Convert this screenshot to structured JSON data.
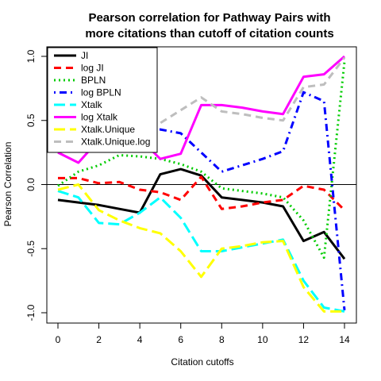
{
  "chart_data": {
    "type": "line",
    "title": "Pearson correlation for Pathway Pairs with more citations than cutoff of citation counts",
    "title_lines": [
      "Pearson correlation for Pathway Pairs with",
      "more citations than cutoff of citation counts"
    ],
    "xlabel": "Citation cutoffs",
    "ylabel": "Pearson Correlation",
    "xlim": [
      0,
      14
    ],
    "ylim": [
      -1.0,
      1.0
    ],
    "x_ticks": [
      0,
      2,
      4,
      6,
      8,
      10,
      12,
      14
    ],
    "y_ticks": [
      -1.0,
      -0.5,
      0.0,
      0.5,
      1.0
    ],
    "y_tick_labels": [
      "-1.0",
      "-0.5",
      "0.0",
      "0.5",
      "1.0"
    ],
    "hline": 0,
    "legend_position": "top-left",
    "x": [
      0,
      1,
      2,
      3,
      4,
      5,
      6,
      7,
      8,
      9,
      10,
      11,
      12,
      13,
      14
    ],
    "series": [
      {
        "name": "JI",
        "color": "#000000",
        "dash": "solid",
        "values": [
          -0.12,
          -0.14,
          -0.16,
          -0.19,
          -0.22,
          0.08,
          0.12,
          0.07,
          -0.1,
          -0.12,
          -0.14,
          -0.17,
          -0.44,
          -0.37,
          -0.58
        ]
      },
      {
        "name": "log JI",
        "color": "#ff0000",
        "dash": "dashed",
        "values": [
          0.05,
          0.05,
          0.01,
          0.02,
          -0.04,
          -0.06,
          -0.12,
          0.06,
          -0.19,
          -0.17,
          -0.14,
          -0.12,
          -0.01,
          -0.04,
          -0.2
        ]
      },
      {
        "name": "BPLN",
        "color": "#00cc00",
        "dash": "dotted",
        "values": [
          -0.01,
          0.1,
          0.15,
          0.23,
          0.22,
          0.2,
          0.16,
          0.1,
          -0.03,
          -0.05,
          -0.07,
          -0.1,
          -0.28,
          -0.57,
          0.96
        ]
      },
      {
        "name": "log BPLN",
        "color": "#0000ff",
        "dash": "dotdash",
        "values": [
          0.3,
          0.4,
          0.43,
          0.43,
          0.43,
          0.43,
          0.4,
          0.25,
          0.1,
          0.15,
          0.2,
          0.26,
          0.72,
          0.65,
          -0.98
        ]
      },
      {
        "name": "Xtalk",
        "color": "#00ffff",
        "dash": "longdash",
        "values": [
          -0.05,
          -0.1,
          -0.3,
          -0.31,
          -0.22,
          -0.1,
          -0.26,
          -0.52,
          -0.52,
          -0.49,
          -0.46,
          -0.43,
          -0.75,
          -0.96,
          -0.99
        ]
      },
      {
        "name": "log Xtalk",
        "color": "#ff00ff",
        "dash": "solid",
        "values": [
          0.25,
          0.17,
          0.35,
          0.37,
          0.36,
          0.2,
          0.24,
          0.62,
          0.62,
          0.6,
          0.57,
          0.55,
          0.84,
          0.86,
          1.0
        ]
      },
      {
        "name": "Xtalk.Unique",
        "color": "#ffff00",
        "dash": "longdash",
        "values": [
          -0.04,
          0.0,
          -0.2,
          -0.28,
          -0.34,
          -0.38,
          -0.52,
          -0.72,
          -0.5,
          -0.48,
          -0.45,
          -0.44,
          -0.8,
          -0.99,
          -0.99
        ]
      },
      {
        "name": "Xtalk.Unique.log",
        "color": "#bebebe",
        "dash": "dashed",
        "values": [
          0.35,
          0.32,
          0.41,
          0.43,
          0.43,
          0.48,
          0.58,
          0.68,
          0.57,
          0.55,
          0.52,
          0.5,
          0.76,
          0.78,
          0.99
        ]
      }
    ]
  }
}
